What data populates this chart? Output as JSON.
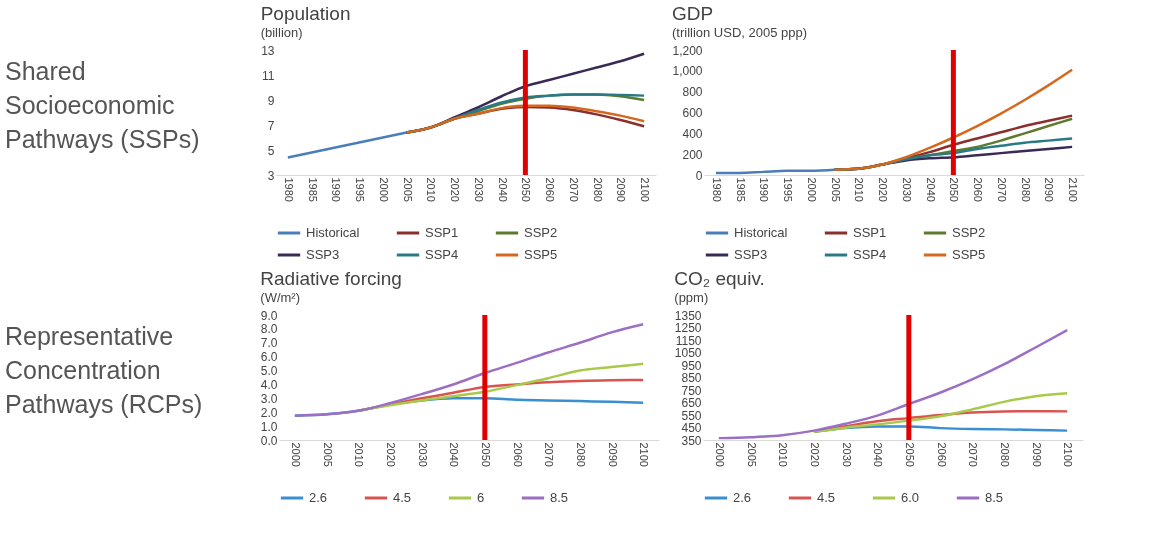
{
  "chart_data": [
    {
      "type": "line",
      "title": "Population",
      "subtitle": "(billion)",
      "annotations": [
        "Shared Socioeconomic Pathways (SSPs)"
      ],
      "categories": [
        "1980",
        "1985",
        "1990",
        "1995",
        "2000",
        "2005",
        "2010",
        "2020",
        "2030",
        "2040",
        "2050",
        "2060",
        "2070",
        "2080",
        "2090",
        "2100"
      ],
      "series": [
        {
          "name": "Historical",
          "color": "#4a7ebb",
          "values": [
            4.4,
            4.8,
            5.2,
            5.6,
            6.0,
            6.4,
            null,
            null,
            null,
            null,
            null,
            null,
            null,
            null,
            null,
            null
          ]
        },
        {
          "name": "SSP1",
          "color": "#8b2e2e",
          "values": [
            null,
            null,
            null,
            null,
            null,
            6.4,
            6.8,
            7.5,
            7.9,
            8.3,
            8.45,
            8.4,
            8.2,
            7.85,
            7.4,
            6.9
          ]
        },
        {
          "name": "SSP2",
          "color": "#5e7a2f",
          "values": [
            null,
            null,
            null,
            null,
            null,
            6.4,
            6.8,
            7.5,
            8.1,
            8.7,
            9.1,
            9.35,
            9.45,
            9.45,
            9.3,
            9.0
          ]
        },
        {
          "name": "SSP3",
          "color": "#3a2a55",
          "values": [
            null,
            null,
            null,
            null,
            null,
            6.4,
            6.8,
            7.6,
            8.4,
            9.3,
            10.1,
            10.6,
            11.1,
            11.6,
            12.1,
            12.7
          ]
        },
        {
          "name": "SSP4",
          "color": "#2a7a85",
          "values": [
            null,
            null,
            null,
            null,
            null,
            6.4,
            6.8,
            7.5,
            8.2,
            8.8,
            9.2,
            9.35,
            9.45,
            9.45,
            9.4,
            9.35
          ]
        },
        {
          "name": "SSP5",
          "color": "#d2691e",
          "values": [
            null,
            null,
            null,
            null,
            null,
            6.4,
            6.8,
            7.5,
            7.9,
            8.35,
            8.55,
            8.55,
            8.4,
            8.1,
            7.75,
            7.3
          ]
        }
      ],
      "ylim": [
        3,
        13
      ],
      "yticks": [
        3,
        5,
        7,
        9,
        11,
        13
      ],
      "ref_lines": [
        {
          "axis": "x",
          "value": "2050",
          "color": "#e00000"
        }
      ],
      "legend": "bottom"
    },
    {
      "type": "line",
      "title": "GDP",
      "subtitle": "(trillion USD, 2005 ppp)",
      "categories": [
        "1980",
        "1985",
        "1990",
        "1995",
        "2000",
        "2005",
        "2010",
        "2020",
        "2030",
        "2040",
        "2050",
        "2060",
        "2070",
        "2080",
        "2090",
        "2100"
      ],
      "series": [
        {
          "name": "Historical",
          "color": "#4a7ebb",
          "values": [
            20,
            20,
            30,
            40,
            40,
            50,
            null,
            null,
            null,
            null,
            null,
            null,
            null,
            null,
            null,
            null
          ]
        },
        {
          "name": "SSP1",
          "color": "#8b2e2e",
          "values": [
            null,
            null,
            null,
            null,
            null,
            50,
            60,
            100,
            160,
            220,
            290,
            350,
            410,
            470,
            520,
            570
          ]
        },
        {
          "name": "SSP2",
          "color": "#5e7a2f",
          "values": [
            null,
            null,
            null,
            null,
            null,
            50,
            60,
            100,
            150,
            190,
            230,
            270,
            330,
            400,
            470,
            540
          ]
        },
        {
          "name": "SSP3",
          "color": "#3a2a55",
          "values": [
            null,
            null,
            null,
            null,
            null,
            50,
            60,
            100,
            140,
            160,
            170,
            190,
            210,
            230,
            250,
            270
          ]
        },
        {
          "name": "SSP4",
          "color": "#2a7a85",
          "values": [
            null,
            null,
            null,
            null,
            null,
            50,
            60,
            100,
            150,
            190,
            210,
            250,
            280,
            310,
            330,
            350
          ]
        },
        {
          "name": "SSP5",
          "color": "#d2691e",
          "values": [
            null,
            null,
            null,
            null,
            null,
            50,
            60,
            100,
            170,
            260,
            360,
            470,
            590,
            720,
            860,
            1010
          ]
        }
      ],
      "ylim": [
        0,
        1200
      ],
      "yticks": [
        0,
        200,
        400,
        600,
        800,
        {
          "value": 1000,
          "label": "1,000"
        },
        {
          "value": 1200,
          "label": "1,200"
        }
      ],
      "ref_lines": [
        {
          "axis": "x",
          "value": "2050",
          "color": "#e00000"
        }
      ],
      "legend": "bottom"
    },
    {
      "type": "line",
      "title": "Radiative forcing",
      "subtitle": "(W/m²)",
      "annotations": [
        "Representative Concentration Pathways (RCPs)"
      ],
      "categories": [
        "2000",
        "2005",
        "2010",
        "2020",
        "2030",
        "2040",
        "2050",
        "2060",
        "2070",
        "2080",
        "2090",
        "2100"
      ],
      "series": [
        {
          "name": "2.6",
          "color": "#3a8fd0",
          "values": [
            1.75,
            1.85,
            2.1,
            2.55,
            2.85,
            3.0,
            3.0,
            2.9,
            2.85,
            2.8,
            2.75,
            2.68
          ]
        },
        {
          "name": "4.5",
          "color": "#d9534f",
          "values": [
            null,
            null,
            2.1,
            2.55,
            3.0,
            3.4,
            3.82,
            4.0,
            4.15,
            4.25,
            4.3,
            4.32
          ]
        },
        {
          "name": "6",
          "color": "#a8c94a",
          "values": [
            null,
            null,
            2.1,
            2.5,
            2.85,
            3.15,
            3.47,
            3.95,
            4.45,
            5.0,
            5.25,
            5.49
          ]
        },
        {
          "name": "8.5",
          "color": "#9b6fc4",
          "values": [
            1.75,
            1.85,
            2.1,
            2.65,
            3.3,
            4.0,
            4.82,
            5.55,
            6.3,
            7.0,
            7.75,
            8.33
          ]
        }
      ],
      "ylim": [
        0,
        9
      ],
      "yticks": [
        {
          "value": 0,
          "label": "0.0"
        },
        {
          "value": 1,
          "label": "1.0"
        },
        {
          "value": 2,
          "label": "2.0"
        },
        {
          "value": 3,
          "label": "3.0"
        },
        {
          "value": 4,
          "label": "4.0"
        },
        {
          "value": 5,
          "label": "5.0"
        },
        {
          "value": 6,
          "label": "6.0"
        },
        {
          "value": 7,
          "label": "7.0"
        },
        {
          "value": 8,
          "label": "8.0"
        },
        {
          "value": 9,
          "label": "9.0"
        }
      ],
      "ref_lines": [
        {
          "axis": "x",
          "value": "2050",
          "color": "#e00000"
        }
      ],
      "legend": "bottom"
    },
    {
      "type": "line",
      "title": "CO₂ equiv.",
      "subtitle": "(ppm)",
      "categories": [
        "2000",
        "2005",
        "2010",
        "2020",
        "2030",
        "2040",
        "2050",
        "2060",
        "2070",
        "2080",
        "2090",
        "2100"
      ],
      "series": [
        {
          "name": "2.6",
          "color": "#3a8fd0",
          "values": [
            null,
            null,
            null,
            415,
            445,
            458,
            459,
            445,
            438,
            435,
            430,
            425
          ]
        },
        {
          "name": "4.5",
          "color": "#d9534f",
          "values": [
            null,
            null,
            null,
            415,
            460,
            500,
            525,
            550,
            570,
            578,
            580,
            579
          ]
        },
        {
          "name": "6.0",
          "color": "#a8c94a",
          "values": [
            null,
            null,
            null,
            415,
            448,
            475,
            505,
            540,
            595,
            655,
            700,
            724
          ]
        },
        {
          "name": "8.5",
          "color": "#9b6fc4",
          "values": [
            365,
            372,
            388,
            425,
            480,
            545,
            638,
            730,
            835,
            955,
            1090,
            1229
          ]
        }
      ],
      "ylim": [
        350,
        1350
      ],
      "yticks": [
        350,
        450,
        550,
        650,
        750,
        850,
        950,
        1050,
        1150,
        1250,
        1350
      ],
      "ref_lines": [
        {
          "axis": "x",
          "value": "2050",
          "color": "#e00000"
        }
      ],
      "legend": "bottom"
    }
  ]
}
